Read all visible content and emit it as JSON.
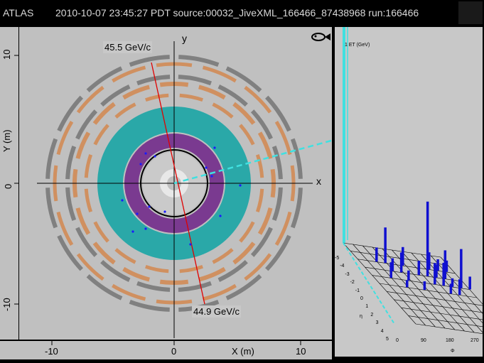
{
  "titlebar": {
    "app_label": "ATLAS",
    "event_info": "2010-10-07 23:45:27 PDT source:00032_JiveXML_166466_87438968 run:166466"
  },
  "xy_view": {
    "y_axis_label": "Y (m)",
    "x_axis_label": "X (m)",
    "x_axis_letter": "x",
    "y_axis_letter": "y",
    "track_top_label": "45.5 GeV/c",
    "track_bottom_label": "44.9 GeV/c",
    "left_ticks": [
      "10",
      "0",
      "-10"
    ],
    "bottom_ticks": [
      "-10",
      "0",
      "10"
    ],
    "colors": {
      "background": "#c0c0c0",
      "calorimeter": "#2aa8a8",
      "em_calo": "#7a3a90",
      "muon_chamber_tan": "#d09060",
      "muon_chamber_gray": "#808080",
      "track": "#e00000",
      "missing_et": "#40e0e0"
    }
  },
  "lego_view": {
    "axis_title": "1 ET (GeV)",
    "eta_ticks": [
      "-5",
      "-4",
      "-3",
      "-2",
      "-1",
      "0",
      "1",
      "2",
      "3",
      "4",
      "5"
    ],
    "eta_label": "η",
    "phi_ticks": [
      "0",
      "90",
      "180",
      "270"
    ],
    "phi_label": "Φ",
    "bar_color": "#1010d0"
  },
  "icons": {
    "logo": "atlas-fish-icon"
  }
}
